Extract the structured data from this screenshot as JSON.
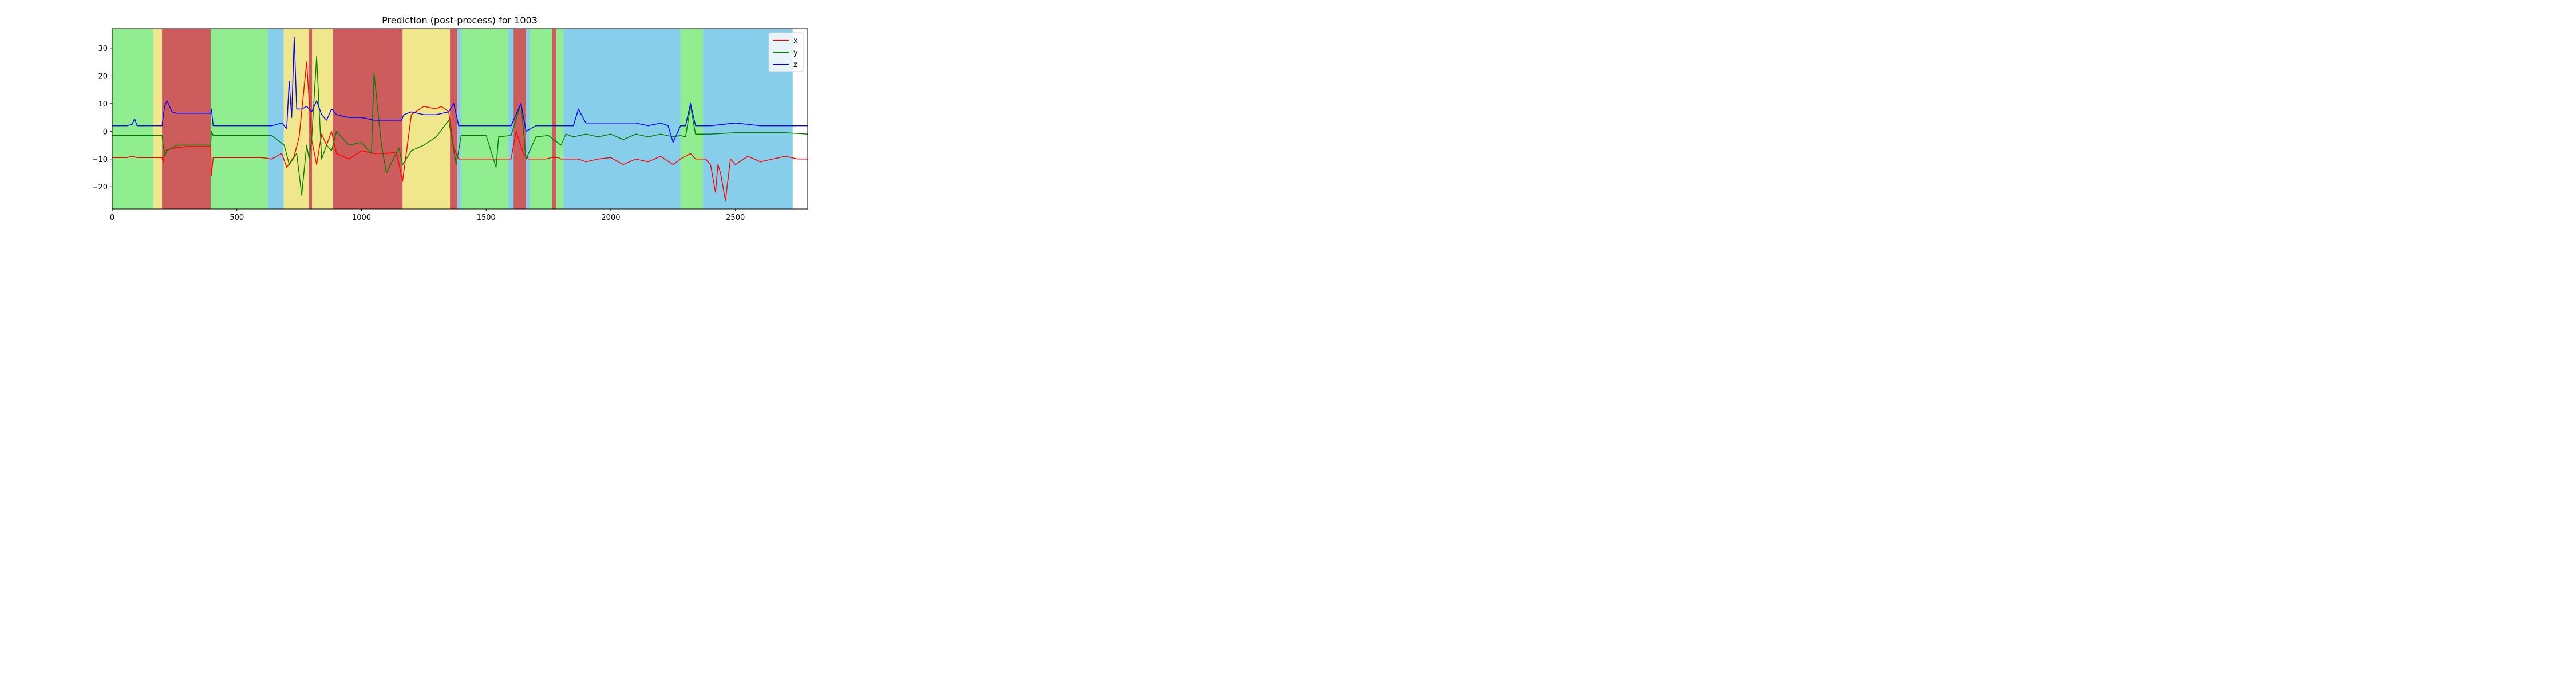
{
  "chart_data": {
    "type": "line",
    "title": "Prediction (post-process) for 1003",
    "xlabel": "",
    "ylabel": "",
    "xlim": [
      0,
      2790
    ],
    "ylim": [
      -28,
      37
    ],
    "x_ticks": [
      0,
      500,
      1000,
      1500,
      2000,
      2500
    ],
    "y_ticks": [
      -20,
      -10,
      0,
      10,
      20,
      30
    ],
    "legend_position": "top-right",
    "segments": [
      {
        "start": 0,
        "end": 165,
        "color": "#90ee90"
      },
      {
        "start": 165,
        "end": 200,
        "color": "#f0e68c"
      },
      {
        "start": 200,
        "end": 395,
        "color": "#cd5c5c"
      },
      {
        "start": 395,
        "end": 625,
        "color": "#90ee90"
      },
      {
        "start": 625,
        "end": 688,
        "color": "#87ceeb"
      },
      {
        "start": 688,
        "end": 788,
        "color": "#f0e68c"
      },
      {
        "start": 788,
        "end": 802,
        "color": "#cd5c5c"
      },
      {
        "start": 802,
        "end": 885,
        "color": "#f0e68c"
      },
      {
        "start": 885,
        "end": 1165,
        "color": "#cd5c5c"
      },
      {
        "start": 1165,
        "end": 1355,
        "color": "#f0e68c"
      },
      {
        "start": 1355,
        "end": 1385,
        "color": "#cd5c5c"
      },
      {
        "start": 1385,
        "end": 1400,
        "color": "#87ceeb"
      },
      {
        "start": 1400,
        "end": 1590,
        "color": "#90ee90"
      },
      {
        "start": 1590,
        "end": 1610,
        "color": "#87ceeb"
      },
      {
        "start": 1610,
        "end": 1660,
        "color": "#cd5c5c"
      },
      {
        "start": 1660,
        "end": 1675,
        "color": "#87ceeb"
      },
      {
        "start": 1675,
        "end": 1765,
        "color": "#90ee90"
      },
      {
        "start": 1765,
        "end": 1782,
        "color": "#cd5c5c"
      },
      {
        "start": 1782,
        "end": 1810,
        "color": "#90ee90"
      },
      {
        "start": 1810,
        "end": 2280,
        "color": "#87ceeb"
      },
      {
        "start": 2280,
        "end": 2370,
        "color": "#90ee90"
      },
      {
        "start": 2370,
        "end": 2730,
        "color": "#87ceeb"
      },
      {
        "start": 2730,
        "end": 2790,
        "color": "#ffffff"
      }
    ],
    "series": [
      {
        "name": "x",
        "color": "#ff0000",
        "x": [
          0,
          60,
          80,
          100,
          160,
          200,
          205,
          210,
          250,
          300,
          395,
          398,
          405,
          500,
          600,
          640,
          680,
          700,
          730,
          750,
          780,
          800,
          820,
          840,
          860,
          880,
          900,
          950,
          1000,
          1050,
          1100,
          1140,
          1165,
          1200,
          1250,
          1300,
          1320,
          1350,
          1370,
          1390,
          1400,
          1450,
          1500,
          1550,
          1600,
          1620,
          1650,
          1670,
          1700,
          1740,
          1760,
          1790,
          1800,
          1850,
          1870,
          1900,
          1950,
          2000,
          2050,
          2100,
          2150,
          2200,
          2250,
          2280,
          2300,
          2320,
          2340,
          2380,
          2400,
          2420,
          2430,
          2440,
          2460,
          2480,
          2500,
          2550,
          2600,
          2650,
          2700,
          2750,
          2790
        ],
        "y": [
          -9.5,
          -9.5,
          -9,
          -9.5,
          -9.5,
          -9.5,
          -11,
          -7,
          -6,
          -5.5,
          -5.5,
          -16,
          -9.5,
          -9.5,
          -9.5,
          -10,
          -8,
          -13,
          -9,
          -2,
          25,
          -3,
          -12,
          -1,
          -5,
          0,
          -8,
          -10,
          -7,
          -8,
          -8,
          -7.5,
          -18,
          6,
          9,
          8,
          9,
          7,
          -6,
          -10,
          -10,
          -10,
          -10,
          -10,
          -10,
          0,
          -8,
          -10,
          -10,
          -10,
          -9.5,
          -9.5,
          -10,
          -10,
          -10,
          -11,
          -10,
          -9.5,
          -12,
          -10,
          -11,
          -9,
          -12,
          -10,
          -9,
          -8,
          -10,
          -10,
          -12,
          -22,
          -12,
          -15,
          -25,
          -10,
          -12,
          -9,
          -11,
          -10,
          -9,
          -10,
          -10
        ]
      },
      {
        "name": "y",
        "color": "#008000",
        "x": [
          0,
          100,
          160,
          200,
          210,
          220,
          260,
          300,
          395,
          398,
          405,
          500,
          600,
          640,
          690,
          710,
          740,
          760,
          780,
          790,
          800,
          820,
          840,
          860,
          880,
          900,
          950,
          1000,
          1040,
          1050,
          1080,
          1100,
          1150,
          1165,
          1200,
          1250,
          1300,
          1350,
          1380,
          1400,
          1450,
          1500,
          1540,
          1550,
          1600,
          1640,
          1660,
          1700,
          1750,
          1800,
          1820,
          1850,
          1900,
          1950,
          2000,
          2050,
          2100,
          2150,
          2200,
          2250,
          2280,
          2300,
          2320,
          2340,
          2400,
          2500,
          2600,
          2700,
          2790
        ],
        "y": [
          -1.5,
          -1.5,
          -1.5,
          -1.5,
          -9,
          -7,
          -5,
          -5,
          -5,
          0,
          -1.5,
          -1.5,
          -1.5,
          -1.5,
          -5,
          -12,
          -8,
          -23,
          -5,
          -10,
          -3,
          27,
          -10,
          -5,
          -7,
          0,
          -5,
          -4,
          -8,
          21,
          -5,
          -15,
          -6,
          -12,
          -7,
          -5,
          -2,
          4,
          -12,
          -1.5,
          -1.5,
          -1.5,
          -13,
          -2,
          -1.5,
          10,
          -10,
          -2,
          -1.5,
          -5,
          -1,
          -2,
          -1,
          -2,
          -1,
          -3,
          -1,
          -2,
          -1,
          -2,
          -1.5,
          -2,
          9,
          -1,
          -1,
          -0.5,
          -0.5,
          -0.5,
          -1
        ]
      },
      {
        "name": "z",
        "color": "#0000ff",
        "x": [
          0,
          60,
          80,
          90,
          100,
          160,
          200,
          210,
          220,
          240,
          260,
          300,
          395,
          398,
          405,
          500,
          600,
          640,
          680,
          700,
          710,
          720,
          730,
          740,
          760,
          780,
          800,
          820,
          840,
          860,
          880,
          900,
          950,
          1000,
          1050,
          1100,
          1160,
          1170,
          1200,
          1250,
          1300,
          1350,
          1370,
          1390,
          1400,
          1450,
          1500,
          1550,
          1600,
          1640,
          1660,
          1700,
          1750,
          1800,
          1850,
          1870,
          1900,
          1950,
          2000,
          2050,
          2100,
          2150,
          2200,
          2230,
          2250,
          2280,
          2300,
          2320,
          2340,
          2400,
          2500,
          2600,
          2700,
          2790
        ],
        "y": [
          2,
          2,
          2.5,
          4.5,
          2,
          2,
          2,
          9,
          11,
          7,
          6.5,
          6.5,
          6.5,
          8,
          2,
          2,
          2,
          2,
          3,
          1,
          18,
          5,
          34,
          8,
          8,
          9,
          7,
          11,
          6,
          4,
          8,
          6,
          5,
          5,
          4,
          4,
          4,
          6,
          7,
          6,
          6,
          7,
          10,
          2,
          2,
          2,
          2,
          2,
          2,
          10,
          0,
          2,
          2,
          2,
          2,
          8,
          3,
          3,
          3,
          3,
          3,
          2,
          3,
          2,
          -4,
          2,
          2,
          10,
          2,
          2,
          3,
          2,
          2,
          2
        ]
      }
    ]
  }
}
